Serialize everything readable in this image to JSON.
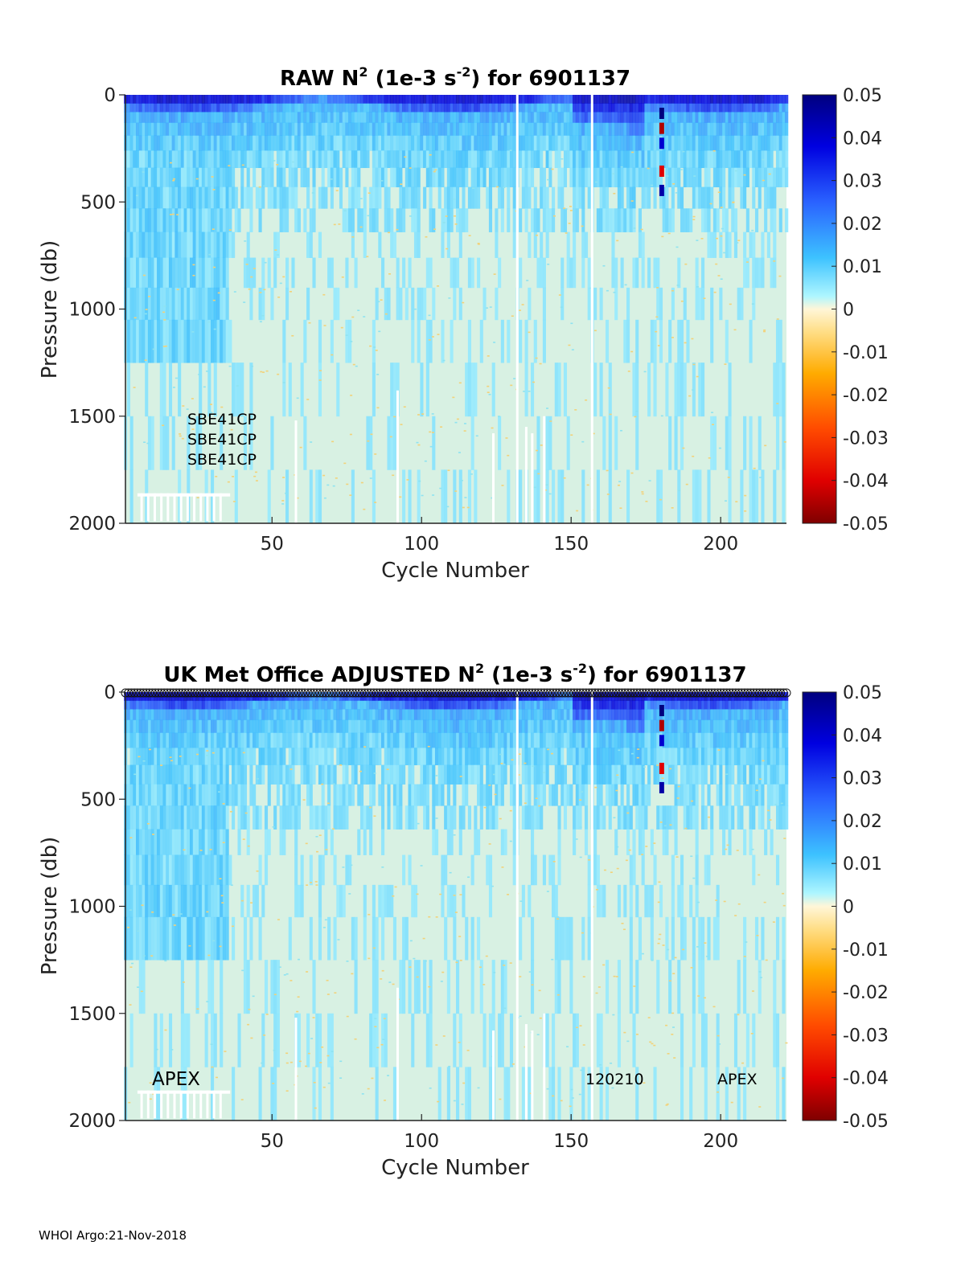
{
  "footer": "WHOI Argo:21-Nov-2018",
  "colors": {
    "background": "#d8f1e3",
    "axis": "#222222"
  },
  "chart_data": [
    {
      "type": "heatmap",
      "id": "raw",
      "title_main": "RAW N",
      "title_sup": "2",
      "title_mid": " (1e-3 s",
      "title_sup2": "-2",
      "title_end": ") for 6901137",
      "xlabel": "Cycle Number",
      "ylabel": "Pressure (db)",
      "xlim": [
        1,
        222
      ],
      "ylim": [
        2000,
        0
      ],
      "xticks": [
        50,
        100,
        150,
        200
      ],
      "yticks": [
        0,
        500,
        1000,
        1500,
        2000
      ],
      "colorbar": {
        "range": [
          -0.05,
          0.05
        ],
        "ticks": [
          "0.05",
          "0.04",
          "0.03",
          "0.02",
          "0.01",
          "0",
          "-0.01",
          "-0.02",
          "-0.03",
          "-0.04",
          "-0.05"
        ]
      },
      "annotations": [
        "SBE41CP",
        "SBE41CP",
        "SBE41CP"
      ]
    },
    {
      "type": "heatmap",
      "id": "adjusted",
      "title_main": "UK Met Office  ADJUSTED N",
      "title_sup": "2",
      "title_mid": " (1e-3 s",
      "title_sup2": "-2",
      "title_end": ") for 6901137",
      "xlabel": "Cycle Number",
      "ylabel": "Pressure (db)",
      "xlim": [
        1,
        222
      ],
      "ylim": [
        2000,
        0
      ],
      "xticks": [
        50,
        100,
        150,
        200
      ],
      "yticks": [
        0,
        500,
        1000,
        1500,
        2000
      ],
      "colorbar": {
        "range": [
          -0.05,
          0.05
        ],
        "ticks": [
          "0.05",
          "0.04",
          "0.03",
          "0.02",
          "0.01",
          "0",
          "-0.01",
          "-0.02",
          "-0.03",
          "-0.04",
          "-0.05"
        ]
      },
      "annotations": [
        "APEX",
        "120210",
        "APEX"
      ]
    }
  ]
}
